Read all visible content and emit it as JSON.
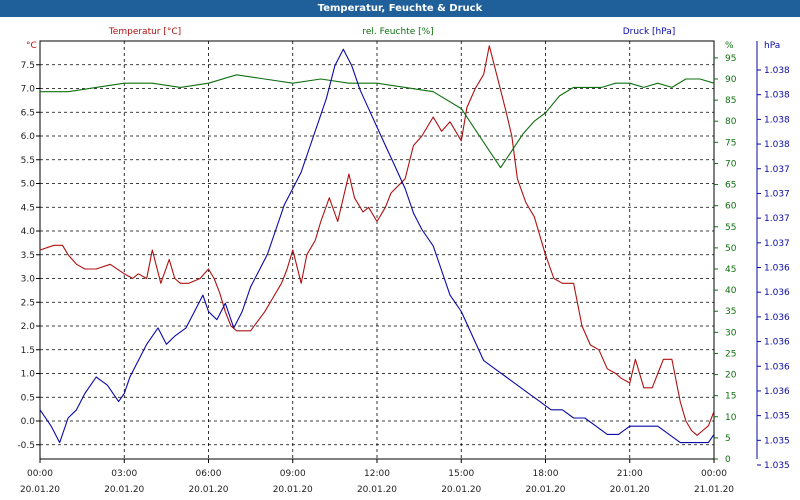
{
  "window": {
    "title": "Temperatur, Feuchte & Druck"
  },
  "colors": {
    "temperature": "#b01010",
    "humidity": "#107010",
    "pressure": "#0a0aa8",
    "text": "#222222",
    "grid": "#000000"
  },
  "chart_data": {
    "type": "line",
    "x_ticks": [
      {
        "h": 0,
        "time": "00:00",
        "date": "20.01.20"
      },
      {
        "h": 3,
        "time": "03:00",
        "date": "20.01.20"
      },
      {
        "h": 6,
        "time": "06:00",
        "date": "20.01.20"
      },
      {
        "h": 9,
        "time": "09:00",
        "date": "20.01.20"
      },
      {
        "h": 12,
        "time": "12:00",
        "date": "20.01.20"
      },
      {
        "h": 15,
        "time": "15:00",
        "date": "20.01.20"
      },
      {
        "h": 18,
        "time": "18:00",
        "date": "20.01.20"
      },
      {
        "h": 21,
        "time": "21:00",
        "date": "20.01.20"
      },
      {
        "h": 24,
        "time": "00:00",
        "date": "21.01.20"
      }
    ],
    "axes": {
      "temperature": {
        "header": "Temperatur [°C]",
        "unit": "°C",
        "range": [
          -0.8,
          8.0
        ],
        "ticks": [
          "-0.5",
          "0.0",
          "0.5",
          "1.0",
          "1.5",
          "2.0",
          "2.5",
          "3.0",
          "3.5",
          "4.0",
          "4.5",
          "5.0",
          "5.5",
          "6.0",
          "6.5",
          "7.0",
          "7.5"
        ]
      },
      "humidity": {
        "header": "rel. Feuchte [%]",
        "unit": "%",
        "range": [
          0,
          99
        ],
        "ticks": [
          "0",
          "5",
          "10",
          "15",
          "20",
          "25",
          "30",
          "35",
          "40",
          "45",
          "50",
          "55",
          "60",
          "65",
          "70",
          "75",
          "80",
          "85",
          "90",
          "95"
        ]
      },
      "pressure": {
        "header": "Druck [hPa]",
        "unit": "hPa",
        "ticks": [
          "1.035",
          "1.035",
          "1.035",
          "1.036",
          "1.036",
          "1.036",
          "1.036",
          "1.036",
          "1.036",
          "1.037",
          "1.037",
          "1.037",
          "1.037",
          "1.038",
          "1.038",
          "1.038",
          "1.038"
        ]
      }
    },
    "grid": true,
    "series": [
      {
        "name": "Temperatur [°C]",
        "axis": "temperature",
        "color": "#b01010",
        "x": [
          0,
          0.5,
          0.8,
          1.0,
          1.3,
          1.6,
          2.0,
          2.5,
          3.0,
          3.3,
          3.5,
          3.8,
          4.0,
          4.3,
          4.6,
          4.8,
          5.0,
          5.3,
          5.7,
          6.0,
          6.2,
          6.4,
          6.6,
          6.8,
          7.0,
          7.5,
          8.0,
          8.3,
          8.6,
          8.8,
          9.0,
          9.3,
          9.5,
          9.8,
          10.0,
          10.3,
          10.6,
          10.8,
          11.0,
          11.2,
          11.5,
          11.7,
          12.0,
          12.3,
          12.5,
          13.0,
          13.3,
          13.6,
          14.0,
          14.3,
          14.6,
          15.0,
          15.2,
          15.5,
          15.8,
          16.0,
          16.3,
          16.6,
          16.8,
          17.0,
          17.3,
          17.6,
          18.0,
          18.3,
          18.6,
          19.0,
          19.3,
          19.6,
          19.9,
          20.2,
          20.5,
          20.7,
          21.0,
          21.2,
          21.5,
          21.8,
          22.0,
          22.2,
          22.5,
          22.8,
          23.0,
          23.2,
          23.4,
          23.6,
          23.8,
          24.0
        ],
        "y": [
          3.6,
          3.7,
          3.7,
          3.5,
          3.3,
          3.2,
          3.2,
          3.3,
          3.1,
          3.0,
          3.1,
          3.0,
          3.6,
          2.9,
          3.4,
          3.0,
          2.9,
          2.9,
          3.0,
          3.2,
          3.0,
          2.7,
          2.3,
          2.0,
          1.9,
          1.9,
          2.3,
          2.6,
          2.9,
          3.2,
          3.6,
          2.9,
          3.5,
          3.8,
          4.2,
          4.7,
          4.2,
          4.7,
          5.2,
          4.7,
          4.4,
          4.5,
          4.2,
          4.5,
          4.8,
          5.1,
          5.8,
          6.0,
          6.4,
          6.1,
          6.3,
          5.9,
          6.6,
          7.0,
          7.3,
          7.9,
          7.2,
          6.5,
          6.0,
          5.1,
          4.6,
          4.3,
          3.5,
          3.0,
          2.9,
          2.9,
          2.0,
          1.6,
          1.5,
          1.1,
          1.0,
          0.9,
          0.8,
          1.3,
          0.7,
          0.7,
          1.0,
          1.3,
          1.3,
          0.4,
          0.0,
          -0.2,
          -0.3,
          -0.2,
          -0.1,
          0.2
        ]
      },
      {
        "name": "rel. Feuchte [%]",
        "axis": "humidity",
        "color": "#107010",
        "x": [
          0,
          1.0,
          2.0,
          3.0,
          4.0,
          5.0,
          6.0,
          7.0,
          8.0,
          9.0,
          10.0,
          11.0,
          12.0,
          13.0,
          14.0,
          15.0,
          15.5,
          16.0,
          16.4,
          16.8,
          17.2,
          17.6,
          18.0,
          18.5,
          19.0,
          19.5,
          20.0,
          20.5,
          21.0,
          21.5,
          22.0,
          22.5,
          23.0,
          23.5,
          24.0
        ],
        "y": [
          87,
          87,
          88,
          89,
          89,
          88,
          89,
          91,
          90,
          89,
          90,
          89,
          89,
          88,
          87,
          83,
          78,
          73,
          69,
          73,
          77,
          80,
          82,
          86,
          88,
          88,
          88,
          89,
          89,
          88,
          89,
          88,
          90,
          90,
          89
        ]
      },
      {
        "name": "Druck [hPa]",
        "axis": "pressure",
        "color": "#0a0aa8",
        "x": [
          0,
          0.4,
          0.7,
          1.0,
          1.3,
          1.6,
          2.0,
          2.4,
          2.8,
          3.0,
          3.2,
          3.5,
          3.8,
          4.2,
          4.5,
          4.8,
          5.2,
          5.5,
          5.8,
          6.0,
          6.3,
          6.6,
          6.9,
          7.2,
          7.5,
          7.8,
          8.1,
          8.4,
          8.7,
          9.0,
          9.3,
          9.6,
          9.9,
          10.2,
          10.5,
          10.8,
          11.1,
          11.4,
          11.8,
          12.2,
          12.6,
          13.0,
          13.3,
          13.6,
          14.0,
          14.3,
          14.6,
          15.0,
          15.4,
          15.8,
          16.2,
          16.6,
          17.0,
          17.4,
          17.8,
          18.2,
          18.6,
          19.0,
          19.4,
          19.8,
          20.2,
          20.6,
          21.0,
          21.3,
          21.6,
          22.0,
          22.4,
          22.8,
          23.2,
          23.5,
          23.8,
          24.0
        ],
        "y": [
          1.0349,
          1.0347,
          1.0345,
          1.0348,
          1.0349,
          1.0351,
          1.0353,
          1.0352,
          1.035,
          1.0351,
          1.0353,
          1.0355,
          1.0357,
          1.0359,
          1.0357,
          1.0358,
          1.0359,
          1.0361,
          1.0363,
          1.0361,
          1.036,
          1.0362,
          1.0359,
          1.0361,
          1.0364,
          1.0366,
          1.0368,
          1.0371,
          1.0374,
          1.0376,
          1.0378,
          1.0381,
          1.0384,
          1.0387,
          1.0391,
          1.0393,
          1.0391,
          1.0388,
          1.0385,
          1.0382,
          1.0379,
          1.0376,
          1.0373,
          1.0371,
          1.0369,
          1.0366,
          1.0363,
          1.0361,
          1.0358,
          1.0355,
          1.0354,
          1.0353,
          1.0352,
          1.0351,
          1.035,
          1.0349,
          1.0349,
          1.0348,
          1.0348,
          1.0347,
          1.0346,
          1.0346,
          1.0347,
          1.0347,
          1.0347,
          1.0347,
          1.0346,
          1.0345,
          1.0345,
          1.0345,
          1.0345,
          1.0346
        ]
      }
    ]
  }
}
